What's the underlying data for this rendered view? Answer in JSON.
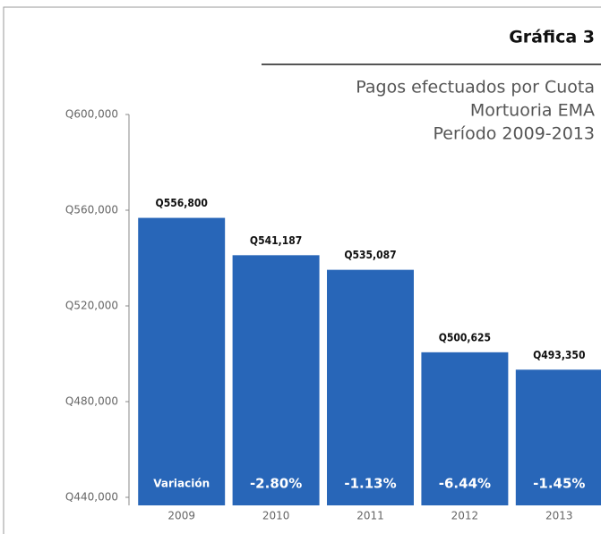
{
  "chart_data": {
    "type": "bar",
    "title": "Gráfica 3",
    "subtitle": [
      "Pagos efectuados por Cuota",
      "Mortuoria EMA",
      "Período 2009-2013"
    ],
    "categories": [
      "2009",
      "2010",
      "2011",
      "2012",
      "2013"
    ],
    "values": [
      556800,
      541187,
      535087,
      500625,
      493350
    ],
    "value_labels": [
      "Q556,800",
      "Q541,187",
      "Q535,087",
      "Q500,625",
      "Q493,350"
    ],
    "variation_label": "Variación",
    "variations": [
      "-2.80%",
      "-1.13%",
      "-6.44%",
      "-1.45%"
    ],
    "color": "#2866b8",
    "ylim": [
      440000,
      600000
    ],
    "yticks": [
      {
        "value": 440000,
        "label": "Q440,000"
      },
      {
        "value": 480000,
        "label": "Q480,000"
      },
      {
        "value": 520000,
        "label": "Q520,000"
      },
      {
        "value": 560000,
        "label": "Q560,000"
      },
      {
        "value": 600000,
        "label": "Q600,000"
      }
    ]
  }
}
